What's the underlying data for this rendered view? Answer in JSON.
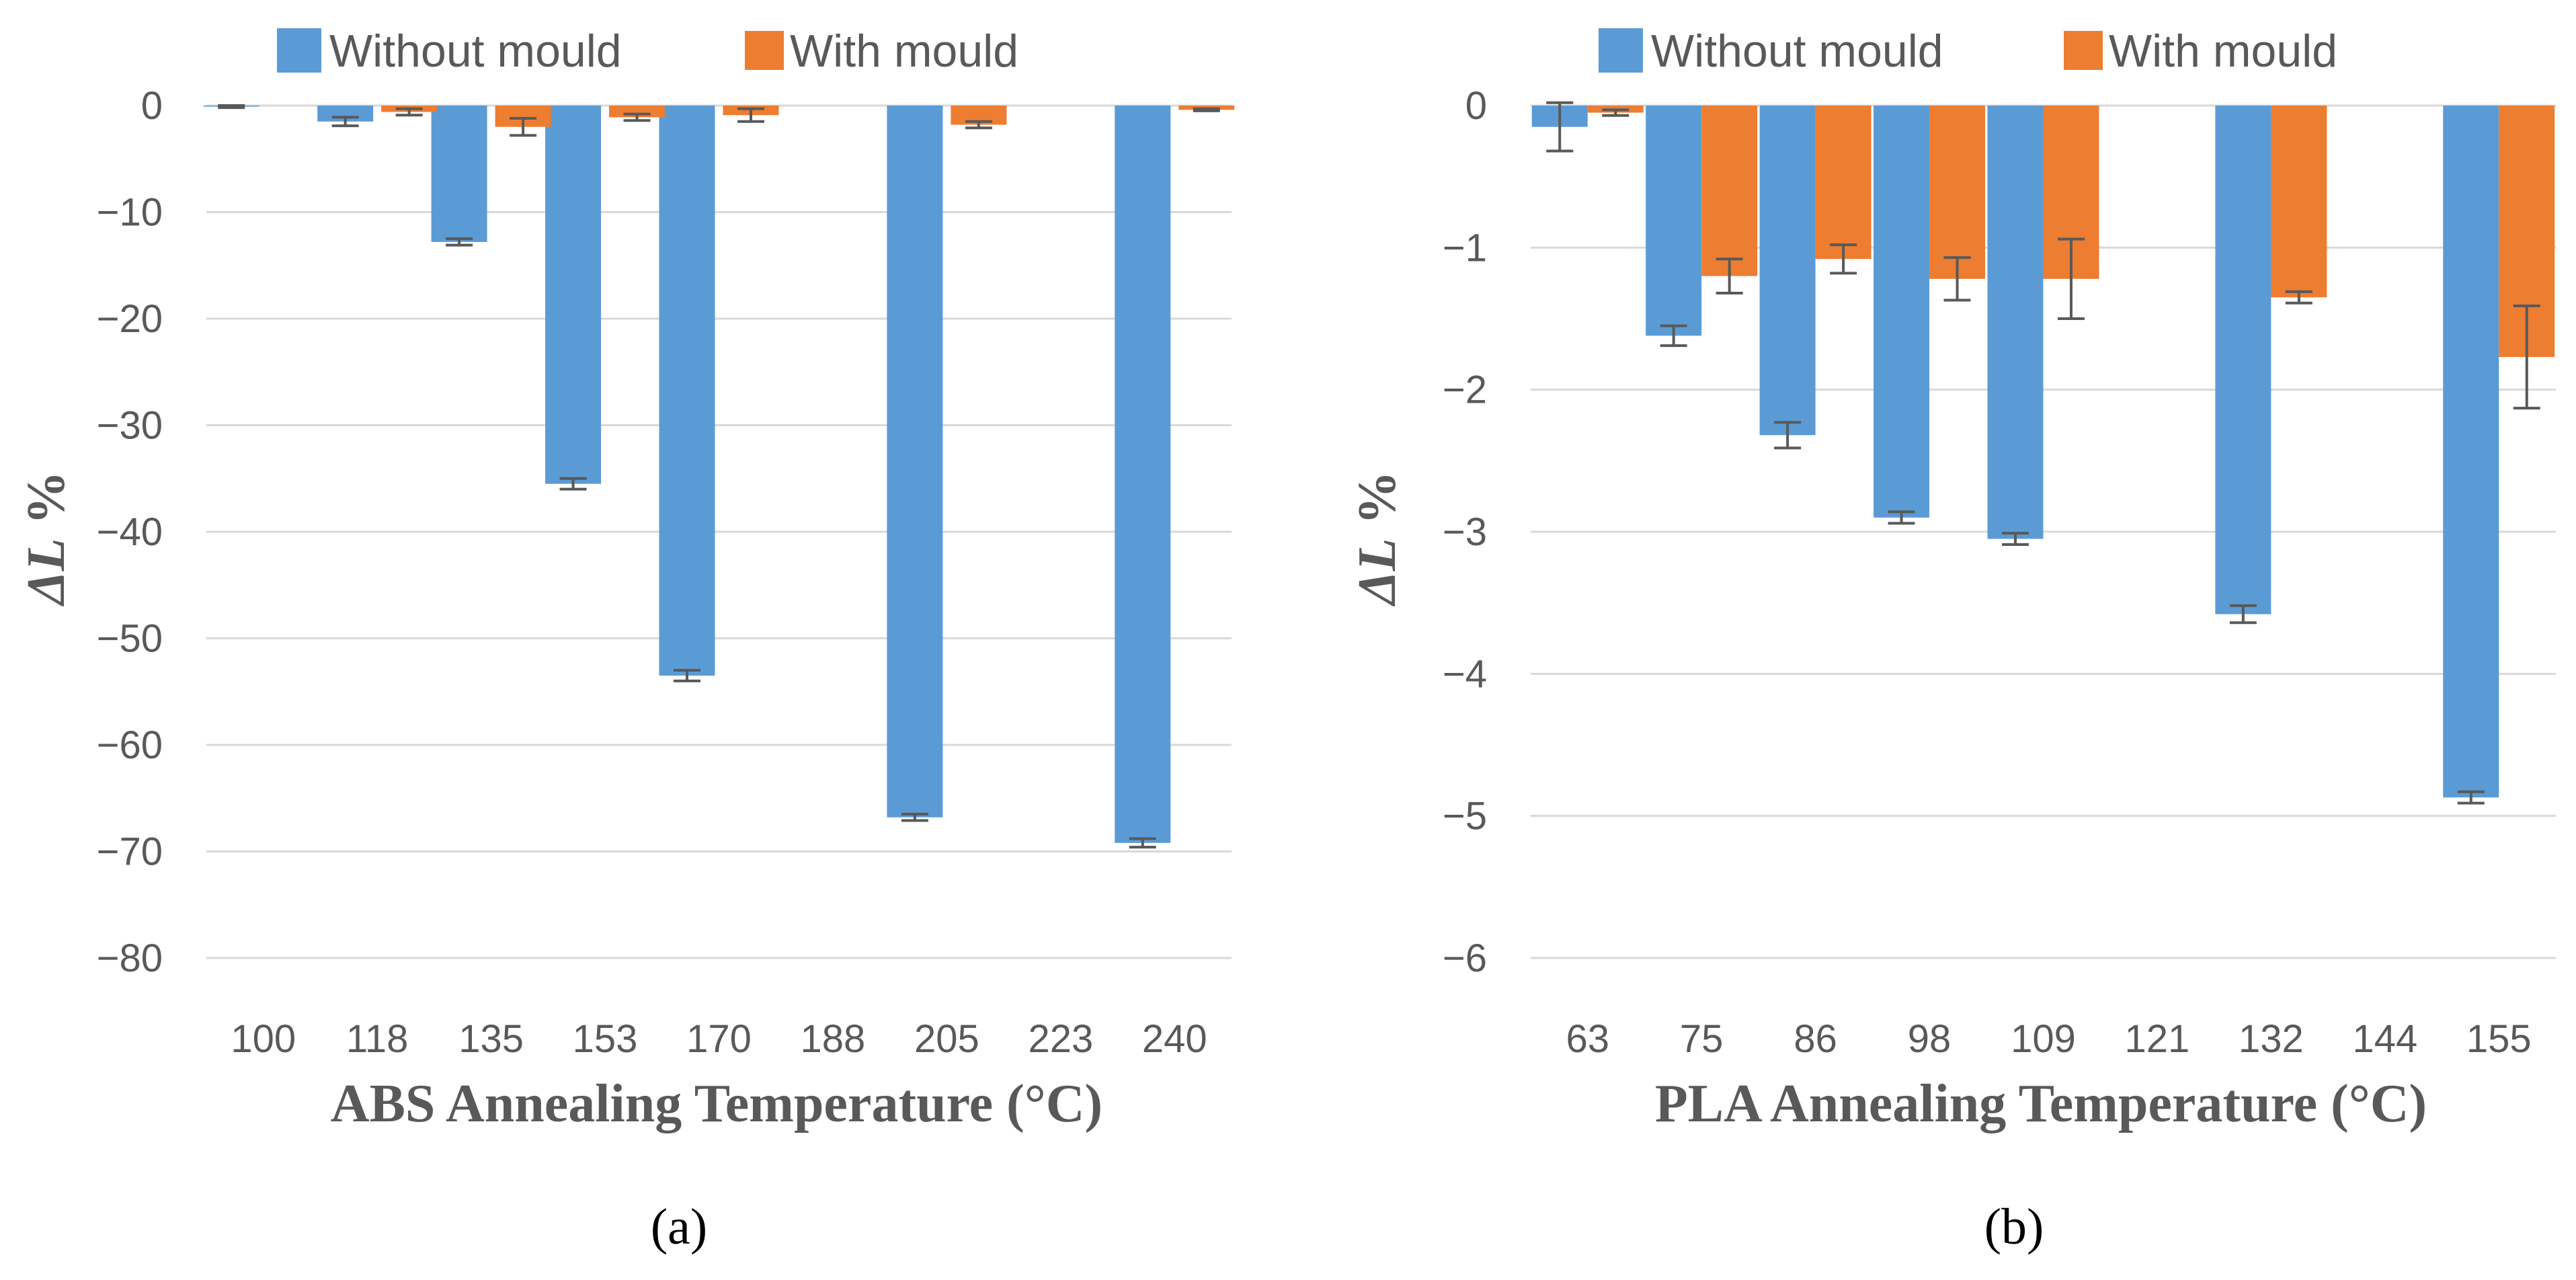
{
  "colors": {
    "without": "#5b9bd5",
    "with": "#ed7d31",
    "grid": "#d9d9d9",
    "text": "#595959",
    "errorbar": "#595959"
  },
  "chart_data": [
    {
      "type": "bar",
      "panel": "(a)",
      "xlabel": "ABS Annealing Temperature (°C)",
      "ylabel_main": "ΔL",
      "ylabel_unit": " %",
      "ylim": [
        -80,
        0
      ],
      "yticks": [
        0,
        -10,
        -20,
        -30,
        -40,
        -50,
        -60,
        -70,
        -80
      ],
      "ytick_labels": [
        "0",
        "−10",
        "−20",
        "−30",
        "−40",
        "−50",
        "−60",
        "−70",
        "−80"
      ],
      "grid": true,
      "legend_position": "top",
      "categories": [
        "100",
        "118",
        "135",
        "153",
        "170",
        "188",
        "205",
        "223",
        "240"
      ],
      "series": [
        {
          "name": "Without mould",
          "color_key": "without",
          "values": [
            -0.1,
            -1.5,
            -12.8,
            -35.5,
            -53.5,
            null,
            -66.8,
            null,
            -69.2
          ],
          "errors": [
            0.1,
            0.4,
            0.3,
            0.5,
            0.5,
            null,
            0.3,
            null,
            0.4
          ]
        },
        {
          "name": "With mould",
          "color_key": "with",
          "values": [
            null,
            -0.6,
            -2.0,
            -1.1,
            -0.9,
            null,
            -1.8,
            null,
            -0.4
          ],
          "errors": [
            null,
            0.3,
            0.8,
            0.3,
            0.6,
            null,
            0.3,
            null,
            0.1
          ]
        }
      ]
    },
    {
      "type": "bar",
      "panel": "(b)",
      "xlabel": "PLA Annealing Temperature (°C)",
      "ylabel_main": "ΔL",
      "ylabel_unit": " %",
      "ylim": [
        -6,
        0
      ],
      "yticks": [
        0,
        -1,
        -2,
        -3,
        -4,
        -5,
        -6
      ],
      "ytick_labels": [
        "0",
        "−1",
        "−2",
        "−3",
        "−4",
        "−5",
        "−6"
      ],
      "grid": true,
      "legend_position": "top",
      "categories": [
        "63",
        "75",
        "86",
        "98",
        "109",
        "121",
        "132",
        "144",
        "155"
      ],
      "series": [
        {
          "name": "Without mould",
          "color_key": "without",
          "values": [
            -0.15,
            -1.62,
            -2.32,
            -2.9,
            -3.05,
            null,
            -3.58,
            null,
            -4.87
          ],
          "errors": [
            0.17,
            0.07,
            0.09,
            0.04,
            0.04,
            null,
            0.06,
            null,
            0.04
          ]
        },
        {
          "name": "With mould",
          "color_key": "with",
          "values": [
            -0.05,
            -1.2,
            -1.08,
            -1.22,
            -1.22,
            null,
            -1.35,
            null,
            -1.77
          ],
          "errors": [
            0.02,
            0.12,
            0.1,
            0.15,
            0.28,
            null,
            0.04,
            null,
            0.36
          ]
        }
      ]
    }
  ]
}
